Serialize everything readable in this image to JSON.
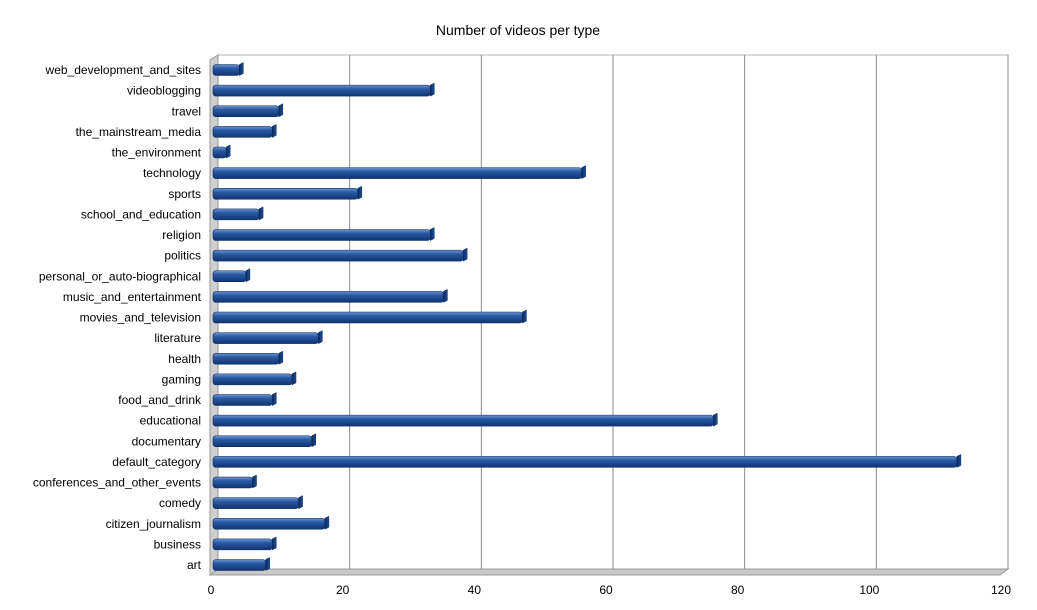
{
  "chart_data": {
    "type": "bar",
    "orientation": "horizontal",
    "title": "Number of videos per type",
    "xlabel": "",
    "ylabel": "",
    "xlim": [
      0,
      120
    ],
    "x_ticks": [
      0,
      20,
      40,
      60,
      80,
      100,
      120
    ],
    "grid": true,
    "legend": "none",
    "bar_color": "#1f4f96",
    "categories": [
      "art",
      "business",
      "citizen_journalism",
      "comedy",
      "conferences_and_other_events",
      "default_category",
      "documentary",
      "educational",
      "food_and_drink",
      "gaming",
      "health",
      "literature",
      "movies_and_television",
      "music_and_entertainment",
      "personal_or_auto-biographical",
      "politics",
      "religion",
      "school_and_education",
      "sports",
      "technology",
      "the_environment",
      "the_mainstream_media",
      "travel",
      "videoblogging",
      "web_development_and_sites"
    ],
    "values": [
      8,
      9,
      17,
      13,
      6,
      113,
      15,
      76,
      9,
      12,
      10,
      16,
      47,
      35,
      5,
      38,
      33,
      7,
      22,
      56,
      2,
      9,
      10,
      33,
      4
    ]
  }
}
